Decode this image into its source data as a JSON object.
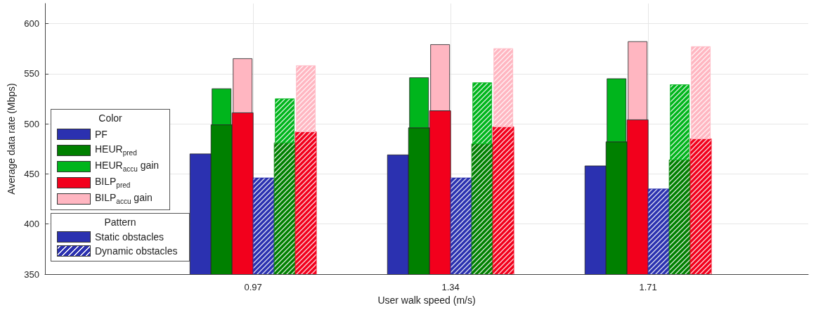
{
  "chart_data": {
    "type": "bar",
    "xlabel": "User walk speed (m/s)",
    "ylabel": "Average data rate (Mbps)",
    "x": [
      0.97,
      1.34,
      1.71
    ],
    "xlim": [
      0.58,
      2.01
    ],
    "xticks": [
      0.97,
      1.34,
      1.71
    ],
    "ylim": [
      350,
      620
    ],
    "yticks": [
      350,
      400,
      450,
      500,
      550,
      600
    ],
    "grid": true,
    "legend": "left",
    "legend_title": "Color",
    "annotations": [
      "Pattern",
      "Static obstacles",
      "Dynamic obstacles"
    ],
    "series": [
      {
        "name": "PF",
        "color": "#2b31b0",
        "values": [
          470,
          469,
          458
        ]
      },
      {
        "name": "HEUR$_{pred}$",
        "color": "#008000",
        "values": [
          499,
          496,
          482
        ]
      },
      {
        "name": "HEUR$_{accu}$ gain",
        "color": "#00b51c",
        "values": [
          36,
          50,
          63
        ],
        "base": [
          499,
          496,
          482
        ]
      },
      {
        "name": "BILP$_{pred}$",
        "color": "#f2001c",
        "values": [
          511,
          513,
          504
        ]
      },
      {
        "name": "BILP$_{accu}$ gain",
        "color": "#ffb6c1",
        "values": [
          54,
          66,
          78
        ],
        "base": [
          511,
          513,
          504
        ]
      },
      {
        "color": "#2b31b0",
        "values": [
          446,
          446,
          435
        ]
      },
      {
        "color": "#008000",
        "values": [
          481,
          480,
          464
        ]
      },
      {
        "color": "#00b51c",
        "values": [
          44,
          61,
          75
        ],
        "base": [
          481,
          480,
          464
        ]
      },
      {
        "color": "#f2001c",
        "values": [
          492,
          497,
          485
        ]
      },
      {
        "color": "#ffb6c1",
        "values": [
          66,
          78,
          92
        ],
        "base": [
          492,
          497,
          485
        ]
      }
    ]
  }
}
